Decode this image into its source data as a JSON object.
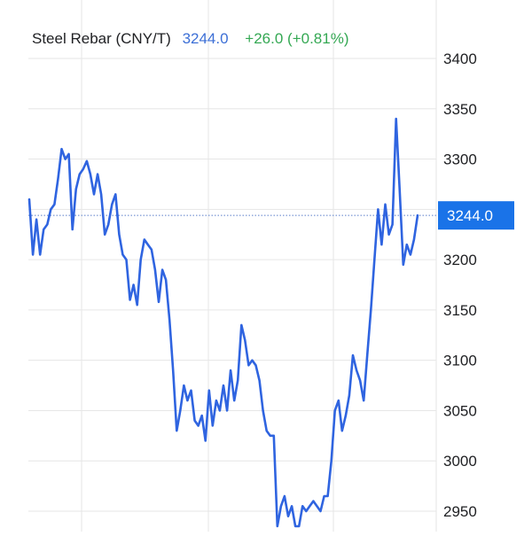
{
  "header": {
    "title": "Steel Rebar (CNY/T)",
    "price": "3244.0",
    "change": "+26.0 (+0.81%)"
  },
  "badge": {
    "label": "3244.0",
    "value": 3244.0
  },
  "colors": {
    "line": "#2f64e0",
    "badge_bg": "#1a73e8",
    "grid": "#e6e6e6",
    "change": "#34a853",
    "price": "#3c6fd6"
  },
  "chart_data": {
    "type": "line",
    "title": "Steel Rebar (CNY/T)",
    "xlabel": "",
    "ylabel": "",
    "ylim": [
      2935,
      3455
    ],
    "y_ticks": [
      2950,
      3000,
      3050,
      3100,
      3150,
      3200,
      3250,
      3300,
      3350,
      3400
    ],
    "y_tick_labels": [
      "2950",
      "3000",
      "3050",
      "3100",
      "3150",
      "3200",
      "",
      "3300",
      "3350",
      "3400"
    ],
    "grid": true,
    "reference_line": 3244.0,
    "series": [
      {
        "name": "",
        "values": [
          3260,
          3205,
          3240,
          3205,
          3230,
          3235,
          3250,
          3255,
          3280,
          3310,
          3300,
          3305,
          3230,
          3270,
          3285,
          3290,
          3298,
          3285,
          3265,
          3285,
          3265,
          3225,
          3235,
          3255,
          3265,
          3225,
          3205,
          3200,
          3160,
          3175,
          3155,
          3200,
          3220,
          3215,
          3210,
          3190,
          3158,
          3190,
          3180,
          3140,
          3090,
          3030,
          3050,
          3075,
          3060,
          3070,
          3040,
          3035,
          3045,
          3020,
          3070,
          3035,
          3060,
          3050,
          3075,
          3050,
          3090,
          3060,
          3080,
          3135,
          3120,
          3095,
          3100,
          3095,
          3080,
          3050,
          3030,
          3025,
          3025,
          2935,
          2955,
          2965,
          2945,
          2955,
          2935,
          2935,
          2955,
          2950,
          2955,
          2960,
          2955,
          2950,
          2965,
          2965,
          3000,
          3050,
          3060,
          3030,
          3045,
          3065,
          3105,
          3090,
          3080,
          3060,
          3105,
          3150,
          3200,
          3250,
          3215,
          3255,
          3225,
          3235,
          3340,
          3270,
          3195,
          3215,
          3205,
          3220,
          3244
        ]
      }
    ]
  }
}
